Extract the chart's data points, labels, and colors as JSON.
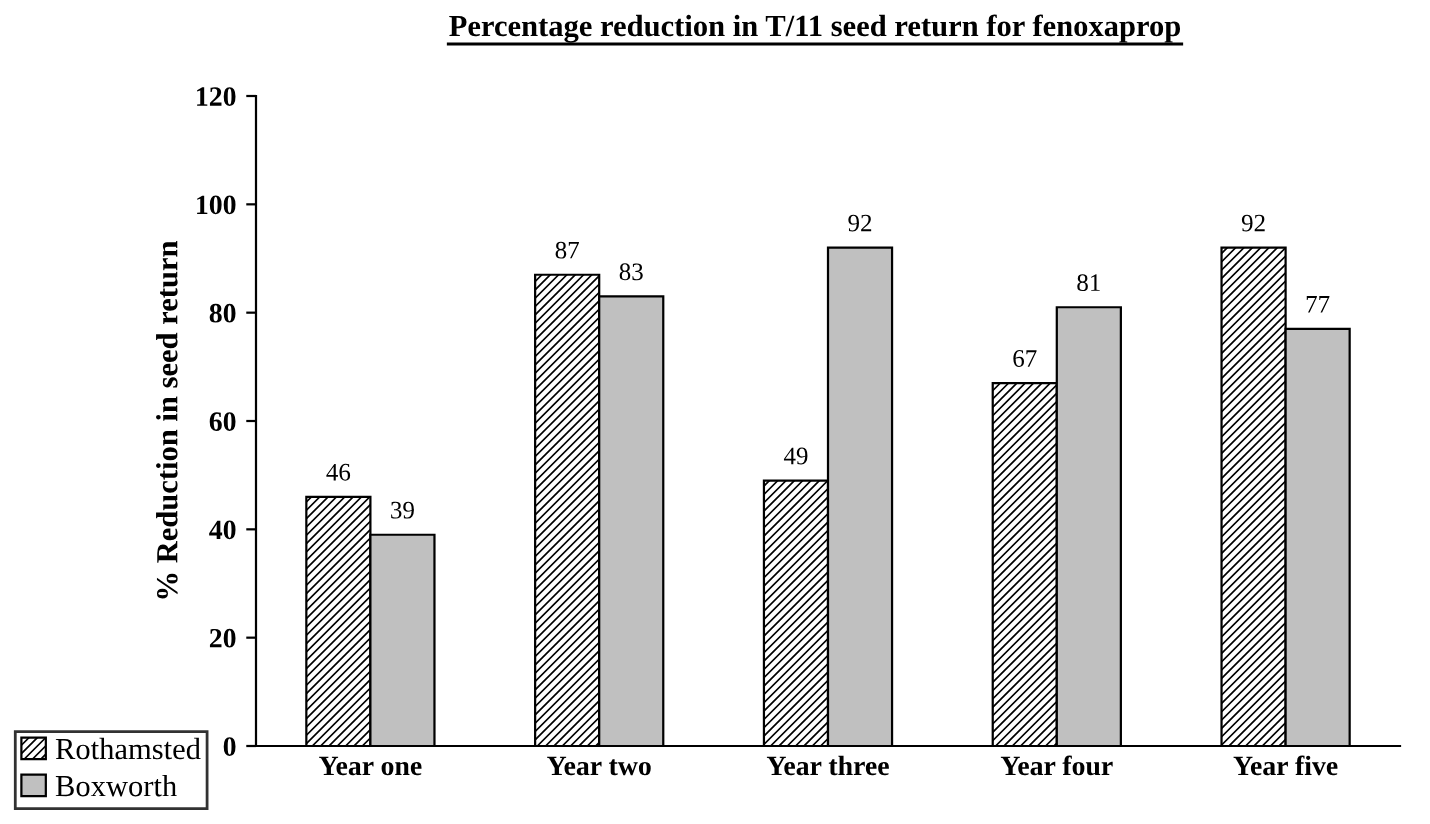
{
  "chart_data": {
    "type": "bar",
    "title": "Percentage reduction in T/11 seed return for fenoxaprop",
    "ylabel": "% Reduction in seed return",
    "categories": [
      "Year one",
      "Year two",
      "Year three",
      "Year four",
      "Year five"
    ],
    "series": [
      {
        "name": "Rothamsted",
        "color": "#000000",
        "values": [
          46,
          87,
          49,
          67,
          92
        ]
      },
      {
        "name": "Boxworth",
        "color": "#c0c0c0",
        "values": [
          39,
          83,
          92,
          81,
          77
        ]
      }
    ],
    "ylim": [
      0,
      120
    ],
    "yticks": [
      0,
      20,
      40,
      60,
      80,
      100,
      120
    ],
    "grid": false,
    "legend": "bottom left",
    "data_labels": true
  }
}
